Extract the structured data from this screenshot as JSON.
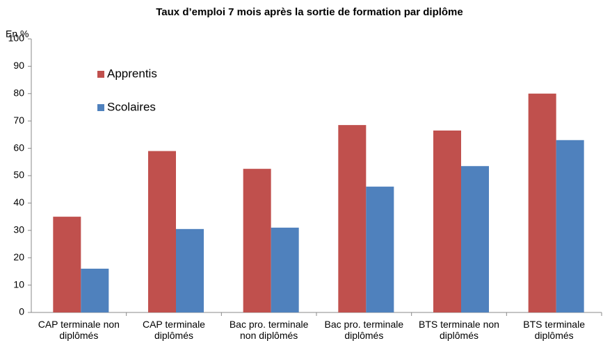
{
  "chart_data": {
    "type": "bar",
    "title": "Taux d’emploi 7 mois après la sortie de formation par diplôme",
    "y_axis_label": "En %",
    "categories": [
      "CAP terminale non diplômés",
      "CAP terminale diplômés",
      "Bac pro. terminale non diplômés",
      "Bac pro. terminale diplômés",
      "BTS terminale non diplômés",
      "BTS terminale diplômés"
    ],
    "series": [
      {
        "name": "Apprentis",
        "color": "#c0504d",
        "values": [
          35,
          59,
          52.5,
          68.5,
          66.5,
          80
        ]
      },
      {
        "name": "Scolaires",
        "color": "#4f81bd",
        "values": [
          16,
          30.5,
          31,
          46,
          53.5,
          63
        ]
      }
    ],
    "ylim": [
      0,
      100
    ],
    "yticks": [
      0,
      10,
      20,
      30,
      40,
      50,
      60,
      70,
      80,
      90,
      100
    ],
    "grid": false,
    "legend": "upper left"
  }
}
